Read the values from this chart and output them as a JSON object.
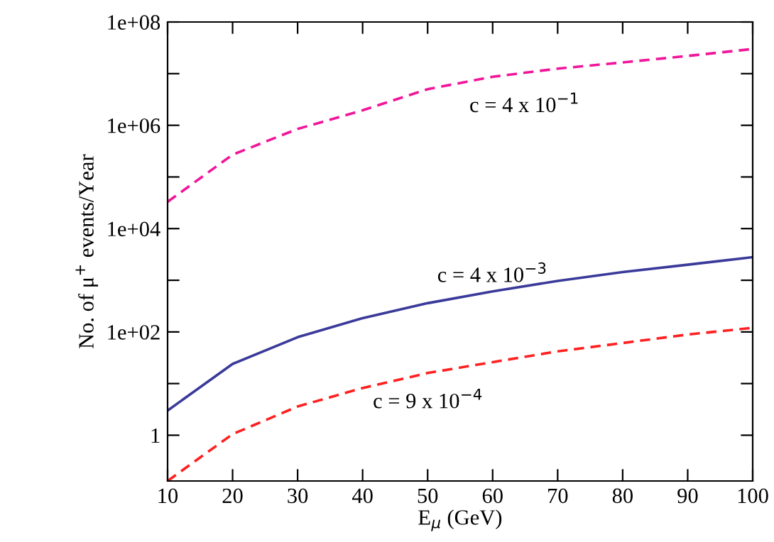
{
  "chart_data": {
    "type": "line",
    "xlabel": "E$_{μ}$ (GeV)",
    "ylabel": "No. of μ$^{+}$ events/Year",
    "log": "y",
    "x": [
      10,
      20,
      30,
      40,
      50,
      60,
      70,
      80,
      90,
      100
    ],
    "series": [
      {
        "color": "#f0169a",
        "line_style": "dashed",
        "values": [
          33000,
          270000,
          850000,
          1950000,
          5000000,
          8700000,
          12500000,
          16500000,
          22000000,
          30000000
        ]
      },
      {
        "color": "#3a3a9a",
        "line_style": "solid",
        "values": [
          3,
          24,
          79,
          185,
          360,
          610,
          970,
          1440,
          2000,
          2800
        ]
      },
      {
        "color": "#ff2020",
        "line_style": "dashed",
        "values": [
          0.13,
          1.05,
          3.6,
          8.2,
          16,
          26,
          42,
          61,
          89,
          120
        ]
      }
    ],
    "annotations": [
      "c = 4 x 10$^{−1}$",
      "c = 4 x 10$^{−3}$",
      "c = 9 x 10$^{−4}$"
    ],
    "xlim": [
      10,
      100
    ],
    "xticks": [
      10,
      20,
      30,
      40,
      50,
      60,
      70,
      80,
      90,
      100
    ],
    "ylim": [
      0.13,
      100000000
    ],
    "yticks": [
      {
        "value": 1,
        "label": "1"
      },
      {
        "value": 10,
        "label": null
      },
      {
        "value": 100,
        "label": "1e+02"
      },
      {
        "value": 1000,
        "label": null
      },
      {
        "value": 10000,
        "label": "1e+04"
      },
      {
        "value": 100000,
        "label": null
      },
      {
        "value": 1000000,
        "label": "1e+06"
      },
      {
        "value": 10000000,
        "label": null
      },
      {
        "value": 100000000,
        "label": "1e+08"
      }
    ],
    "grid": false
  }
}
